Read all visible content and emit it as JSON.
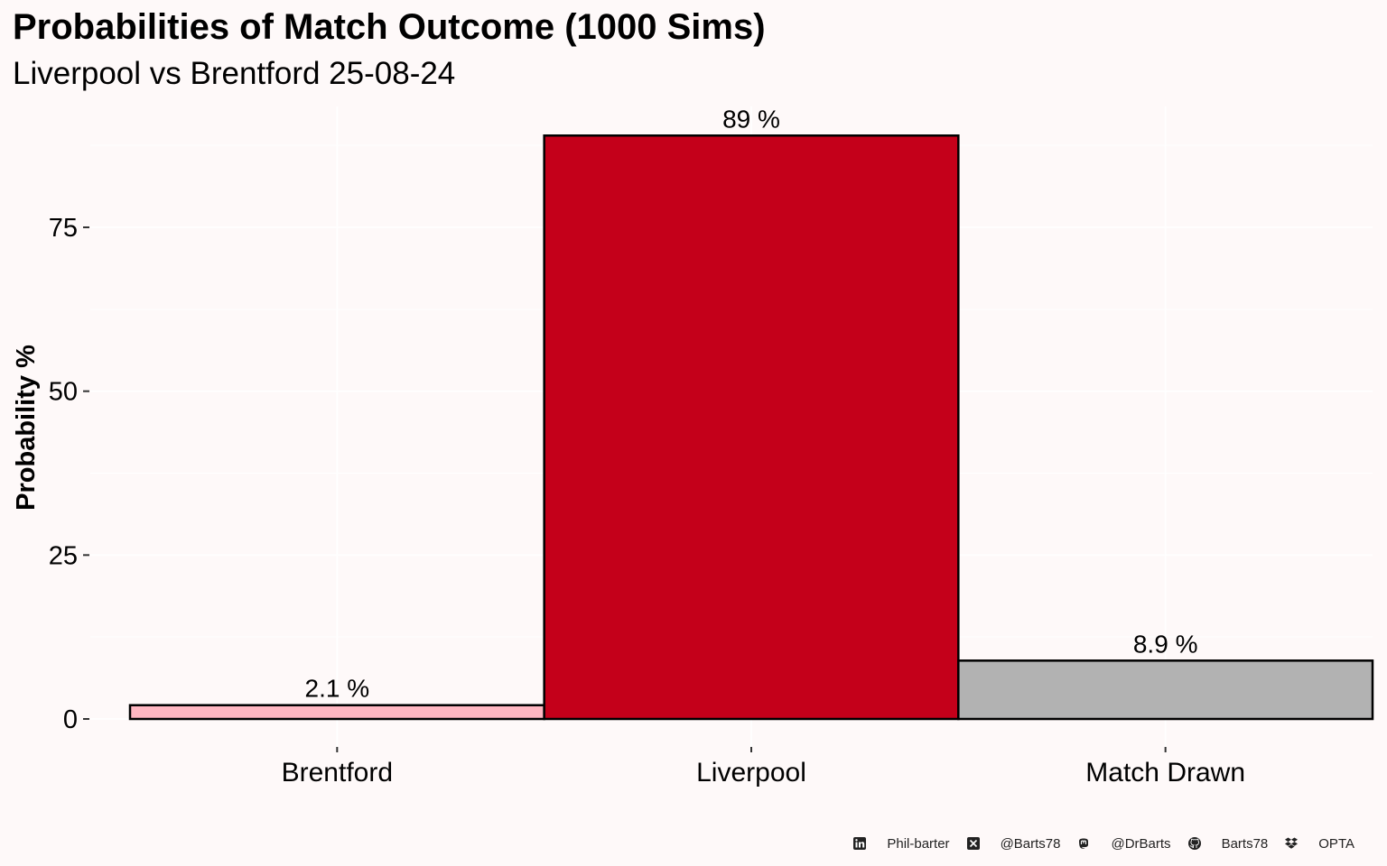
{
  "chart_data": {
    "type": "bar",
    "title": "Probabilities of Match Outcome (1000 Sims)",
    "subtitle": "Liverpool vs Brentford 25-08-24",
    "xlabel": "",
    "ylabel": "Probability %",
    "categories": [
      "Brentford",
      "Liverpool",
      "Match Drawn"
    ],
    "values": [
      2.1,
      89,
      8.9
    ],
    "data_labels": [
      "2.1  %",
      "89  %",
      "8.9  %"
    ],
    "bar_colors": [
      "#FFB6C1",
      "#C4001A",
      "#B2B2B2"
    ],
    "bar_outline": "#000000",
    "ylim": [
      0,
      92
    ],
    "yticks": [
      0,
      25,
      50,
      75
    ],
    "grid": true,
    "legend": "none"
  },
  "footer": {
    "linkedin_icon": "linkedin-icon",
    "linkedin": "Phil-barter",
    "x_icon": "x-twitter-icon",
    "x": "@Barts78",
    "mastodon_icon": "mastodon-icon",
    "mastodon": "@DrBarts",
    "github_icon": "github-icon",
    "github": "Barts78",
    "dropbox_icon": "dropbox-icon",
    "source": "OPTA"
  },
  "colors": {
    "background": "#FEF9F9",
    "grid": "#FFFFFF"
  }
}
